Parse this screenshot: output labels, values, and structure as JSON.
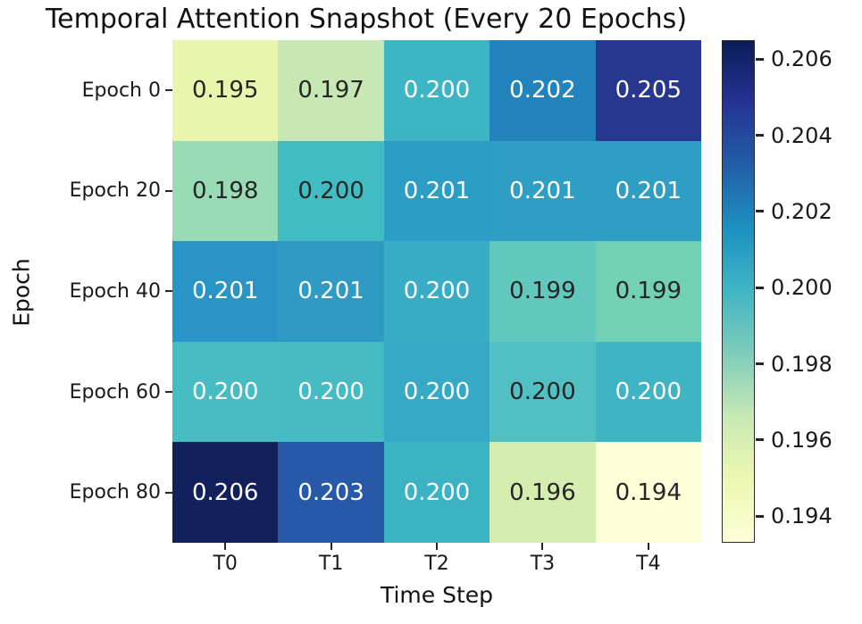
{
  "chart_data": {
    "type": "heatmap",
    "title": "Temporal Attention Snapshot (Every 20 Epochs)",
    "xlabel": "Time Step",
    "ylabel": "Epoch",
    "x_categories": [
      "T0",
      "T1",
      "T2",
      "T3",
      "T4"
    ],
    "y_categories": [
      "Epoch 0",
      "Epoch 20",
      "Epoch 40",
      "Epoch 60",
      "Epoch 80"
    ],
    "values": [
      [
        0.195,
        0.197,
        0.2,
        0.202,
        0.205
      ],
      [
        0.198,
        0.2,
        0.201,
        0.201,
        0.201
      ],
      [
        0.201,
        0.201,
        0.2,
        0.199,
        0.199
      ],
      [
        0.2,
        0.2,
        0.2,
        0.2,
        0.2
      ],
      [
        0.206,
        0.203,
        0.2,
        0.196,
        0.194
      ]
    ],
    "value_decimals": 3,
    "cell_colors": [
      [
        "#e8f5ad",
        "#c7e8b4",
        "#3eb5c4",
        "#2383bd",
        "#27378f"
      ],
      [
        "#98dbb4",
        "#42bcc3",
        "#2c9dc5",
        "#2e9ec5",
        "#2e9ec5"
      ],
      [
        "#2b94c6",
        "#2f9bc5",
        "#38adc5",
        "#60c8bd",
        "#72d1b5"
      ],
      [
        "#48bcc3",
        "#46bbc3",
        "#35a9c5",
        "#50c0c2",
        "#3fb4c4"
      ],
      [
        "#12205c",
        "#2859a8",
        "#3cb3c4",
        "#d5eeb0",
        "#fdffd8"
      ]
    ],
    "text_colors": [
      [
        "#262626",
        "#262626",
        "#ffffff",
        "#ffffff",
        "#ffffff"
      ],
      [
        "#262626",
        "#262626",
        "#ffffff",
        "#ffffff",
        "#ffffff"
      ],
      [
        "#ffffff",
        "#ffffff",
        "#ffffff",
        "#262626",
        "#262626"
      ],
      [
        "#ffffff",
        "#ffffff",
        "#ffffff",
        "#262626",
        "#ffffff"
      ],
      [
        "#ffffff",
        "#ffffff",
        "#ffffff",
        "#262626",
        "#262626"
      ]
    ],
    "colorbar": {
      "colormap": "YlGnBu",
      "vmin": 0.1933,
      "vmax": 0.2065,
      "ticks": [
        "0.206",
        "0.204",
        "0.202",
        "0.200",
        "0.198",
        "0.196",
        "0.194"
      ],
      "gradient_top_to_bottom": [
        "#081d58",
        "#253494",
        "#225ea8",
        "#1d91c0",
        "#41b6c4",
        "#7fcdbb",
        "#c7e9b4",
        "#edf8b1",
        "#ffffd9"
      ]
    },
    "legend_position": "right-colorbar",
    "grid": false
  }
}
